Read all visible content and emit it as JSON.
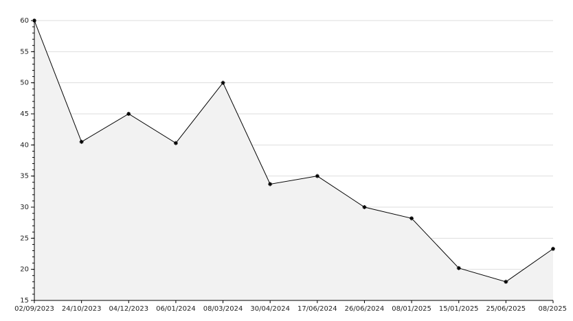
{
  "chart_data": {
    "type": "area",
    "categories": [
      "02/09/2023",
      "24/10/2023",
      "04/12/2023",
      "06/01/2024",
      "08/03/2024",
      "30/04/2024",
      "17/06/2024",
      "26/06/2024",
      "08/01/2025",
      "15/01/2025",
      "25/06/2025",
      "08/2025"
    ],
    "values": [
      60,
      40.5,
      45,
      40.3,
      50,
      33.7,
      35,
      30,
      28.2,
      20.2,
      18,
      23.3
    ],
    "color": "#000000",
    "fill": "#f2f2f2",
    "ylim": [
      15,
      60
    ],
    "yticks": [
      15,
      20,
      25,
      30,
      35,
      40,
      45,
      50,
      55,
      60
    ],
    "grid": true
  }
}
